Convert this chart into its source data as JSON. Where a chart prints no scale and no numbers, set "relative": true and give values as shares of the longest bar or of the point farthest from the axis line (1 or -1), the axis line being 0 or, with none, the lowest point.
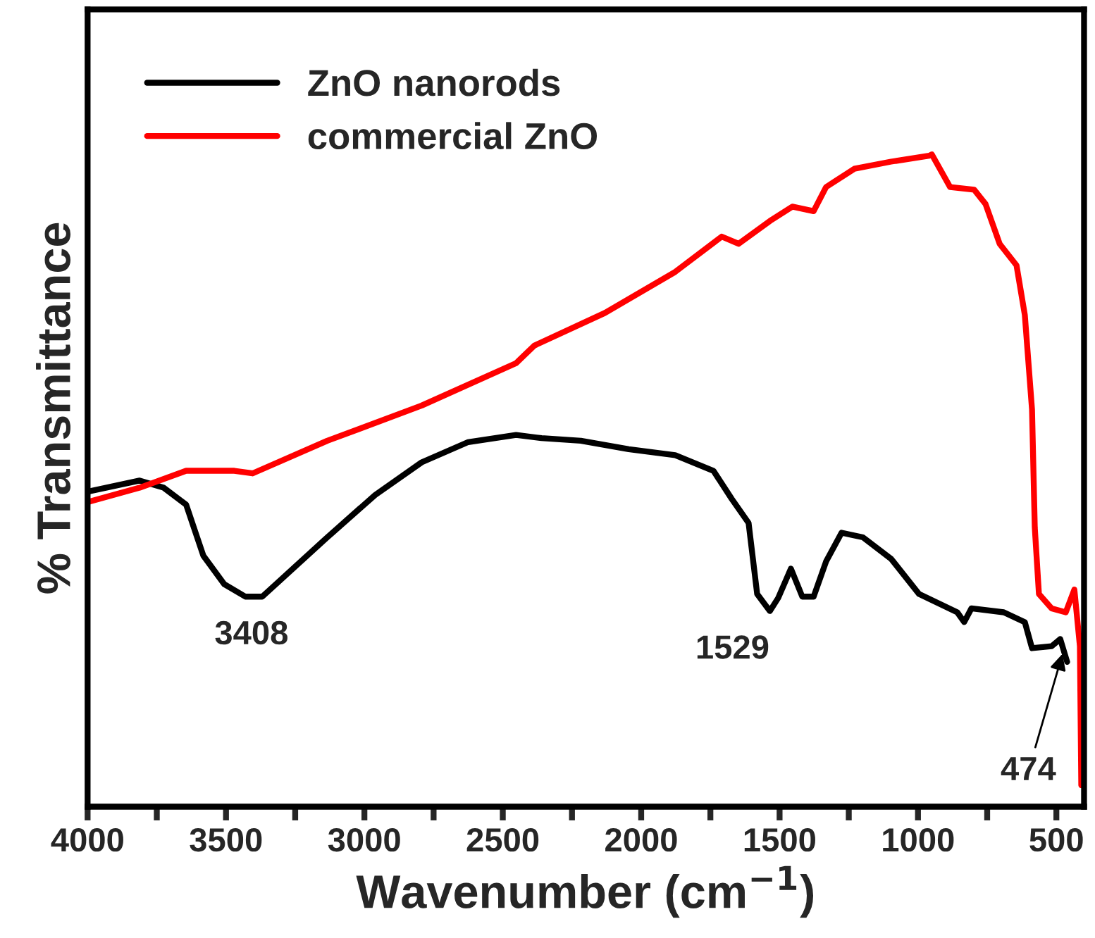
{
  "chart_data": {
    "type": "line",
    "xlabel": "Wavenumber (cm$^{−1}$)",
    "ylabel": "% Transmittance",
    "relative": true,
    "xlim": [
      4000,
      400
    ],
    "xticks": [
      4000,
      {
        "value": 3750,
        "label": null
      },
      3500,
      {
        "value": 3250,
        "label": null
      },
      3000,
      {
        "value": 2750,
        "label": null
      },
      2500,
      {
        "value": 2250,
        "label": null
      },
      2000,
      {
        "value": 1750,
        "label": null
      },
      1500,
      {
        "value": 1250,
        "label": null
      },
      1000,
      {
        "value": 750,
        "label": null
      },
      500
    ],
    "legend": "top left",
    "grid": false,
    "series": [
      {
        "name": "ZnO nanorods",
        "color": "#000000",
        "x": [
          4000,
          3812,
          3725,
          3644,
          3582,
          3506,
          3430,
          3369,
          3302,
          3134,
          2961,
          2793,
          2625,
          2452,
          2360,
          2218,
          2045,
          1877,
          1739,
          1673,
          1612,
          1581,
          1535,
          1505,
          1459,
          1418,
          1377,
          1332,
          1276,
          1199,
          1097,
          996,
          858,
          833,
          807,
          690,
          614,
          588,
          517,
          486,
          461
        ],
        "values": [
          0.483,
          0.5,
          0.489,
          0.463,
          0.385,
          0.341,
          0.322,
          0.322,
          0.348,
          0.413,
          0.478,
          0.528,
          0.559,
          0.57,
          0.565,
          0.561,
          0.548,
          0.539,
          0.515,
          0.472,
          0.435,
          0.326,
          0.3,
          0.32,
          0.365,
          0.322,
          0.322,
          0.376,
          0.42,
          0.413,
          0.38,
          0.326,
          0.298,
          0.283,
          0.304,
          0.298,
          0.283,
          0.243,
          0.246,
          0.257,
          0.222
        ]
      },
      {
        "name": "commercial ZnO",
        "color": "#ff0000",
        "x": [
          4000,
          3812,
          3644,
          3470,
          3404,
          3134,
          2793,
          2452,
          2386,
          2131,
          1877,
          1709,
          1648,
          1535,
          1454,
          1377,
          1332,
          1230,
          1097,
          960,
          950,
          884,
          797,
          756,
          705,
          644,
          614,
          588,
          578,
          563,
          517,
          466,
          435,
          415,
          410
        ],
        "values": [
          0.467,
          0.489,
          0.515,
          0.515,
          0.511,
          0.561,
          0.615,
          0.68,
          0.707,
          0.757,
          0.82,
          0.874,
          0.863,
          0.898,
          0.92,
          0.913,
          0.95,
          0.978,
          0.989,
          0.998,
          1.0,
          0.95,
          0.946,
          0.924,
          0.863,
          0.83,
          0.754,
          0.609,
          0.428,
          0.326,
          0.304,
          0.298,
          0.333,
          0.246,
          0.033
        ]
      }
    ],
    "annotations": [
      {
        "text": "3408",
        "x": 3408,
        "y": 0.322
      },
      {
        "text": "1529",
        "x": 1529,
        "y": 0.3
      },
      {
        "text": "474",
        "x": 474,
        "y": 0.24
      }
    ]
  }
}
